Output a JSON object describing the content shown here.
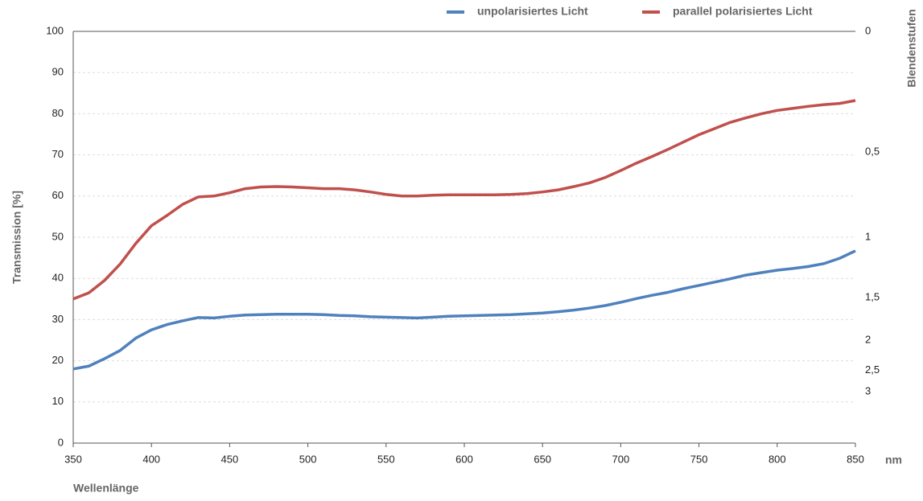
{
  "chart_data": {
    "type": "line",
    "y_label": "Transmission [%]",
    "y2_label": "Blendenstufen",
    "x_label": "Wellenlänge",
    "x_unit": "nm",
    "x": [
      350,
      360,
      370,
      380,
      390,
      400,
      410,
      420,
      430,
      440,
      450,
      460,
      470,
      480,
      490,
      500,
      510,
      520,
      530,
      540,
      550,
      560,
      570,
      580,
      590,
      600,
      610,
      620,
      630,
      640,
      650,
      660,
      670,
      680,
      690,
      700,
      710,
      720,
      730,
      740,
      750,
      760,
      770,
      780,
      790,
      800,
      810,
      820,
      830,
      840,
      850
    ],
    "series": [
      {
        "name": "unpolarisiertes Licht",
        "color": "#4f81bd",
        "values": [
          18,
          18.7,
          20.5,
          22.5,
          25.5,
          27.5,
          28.8,
          29.7,
          30.5,
          30.4,
          30.8,
          31.1,
          31.2,
          31.3,
          31.3,
          31.3,
          31.2,
          31.0,
          30.9,
          30.7,
          30.6,
          30.5,
          30.4,
          30.6,
          30.8,
          30.9,
          31.0,
          31.1,
          31.2,
          31.4,
          31.6,
          31.9,
          32.3,
          32.8,
          33.4,
          34.2,
          35.1,
          35.9,
          36.6,
          37.5,
          38.3,
          39.1,
          39.9,
          40.8,
          41.4,
          42.0,
          42.4,
          42.9,
          43.6,
          44.9,
          46.7
        ]
      },
      {
        "name": "parallel polarisiertes Licht",
        "color": "#c0504d",
        "values": [
          35,
          36.5,
          39.5,
          43.5,
          48.5,
          52.8,
          55.3,
          58.0,
          59.8,
          60.0,
          60.8,
          61.8,
          62.2,
          62.3,
          62.2,
          62.0,
          61.8,
          61.8,
          61.5,
          61.0,
          60.4,
          60.0,
          60.0,
          60.2,
          60.3,
          60.3,
          60.3,
          60.3,
          60.4,
          60.6,
          61.0,
          61.5,
          62.3,
          63.2,
          64.5,
          66.2,
          68.0,
          69.6,
          71.3,
          73.1,
          74.9,
          76.4,
          77.9,
          79.0,
          80.0,
          80.8,
          81.3,
          81.8,
          82.2,
          82.5,
          83.2
        ]
      }
    ],
    "xlim": [
      350,
      850
    ],
    "xticks": [
      350,
      400,
      450,
      500,
      550,
      600,
      650,
      700,
      750,
      800,
      850
    ],
    "ylim": [
      0,
      100
    ],
    "yticks": [
      0,
      10,
      20,
      30,
      40,
      50,
      60,
      70,
      80,
      90,
      100
    ],
    "y2_scale": "aperture-stops",
    "y2ticks": [
      0,
      {
        "value": 0.5,
        "label": "0,5"
      },
      1,
      {
        "value": 1.5,
        "label": "1,5"
      },
      2,
      {
        "value": 2.5,
        "label": "2,5"
      },
      3
    ],
    "grid": true,
    "legend": "top-right"
  }
}
